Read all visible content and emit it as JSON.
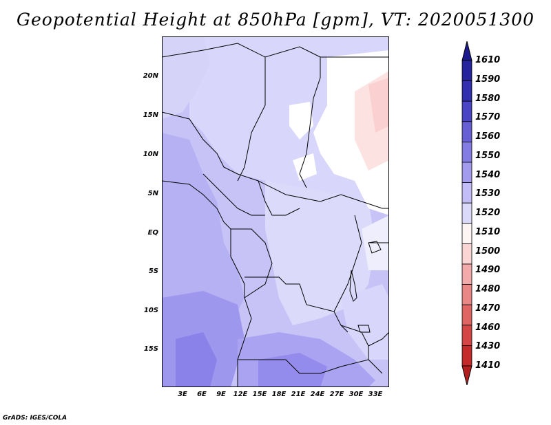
{
  "title": "Geopotential Height at 850hPa [gpm], VT: 2020051300",
  "credit": "GrADS: IGES/COLA",
  "lat_labels": [
    "20N",
    "15N",
    "10N",
    "5N",
    "EQ",
    "5S",
    "10S",
    "15S"
  ],
  "lon_labels": [
    "3E",
    "6E",
    "9E",
    "12E",
    "15E",
    "18E",
    "21E",
    "24E",
    "27E",
    "30E",
    "33E"
  ],
  "colorbar": {
    "labels": [
      "1610",
      "1590",
      "1580",
      "1570",
      "1560",
      "1550",
      "1540",
      "1530",
      "1520",
      "1510",
      "1500",
      "1490",
      "1480",
      "1470",
      "1460",
      "1430",
      "1410"
    ],
    "colors": [
      "#1c1a8c",
      "#26239e",
      "#3330b0",
      "#4a45c4",
      "#6760d4",
      "#837ce2",
      "#a29bee",
      "#c2bdf6",
      "#dcdafa",
      "#fdf4f4",
      "#fbd4d4",
      "#f3aaaa",
      "#e98787",
      "#df6565",
      "#d44545",
      "#c52a2a",
      "#b51e1e"
    ]
  }
}
